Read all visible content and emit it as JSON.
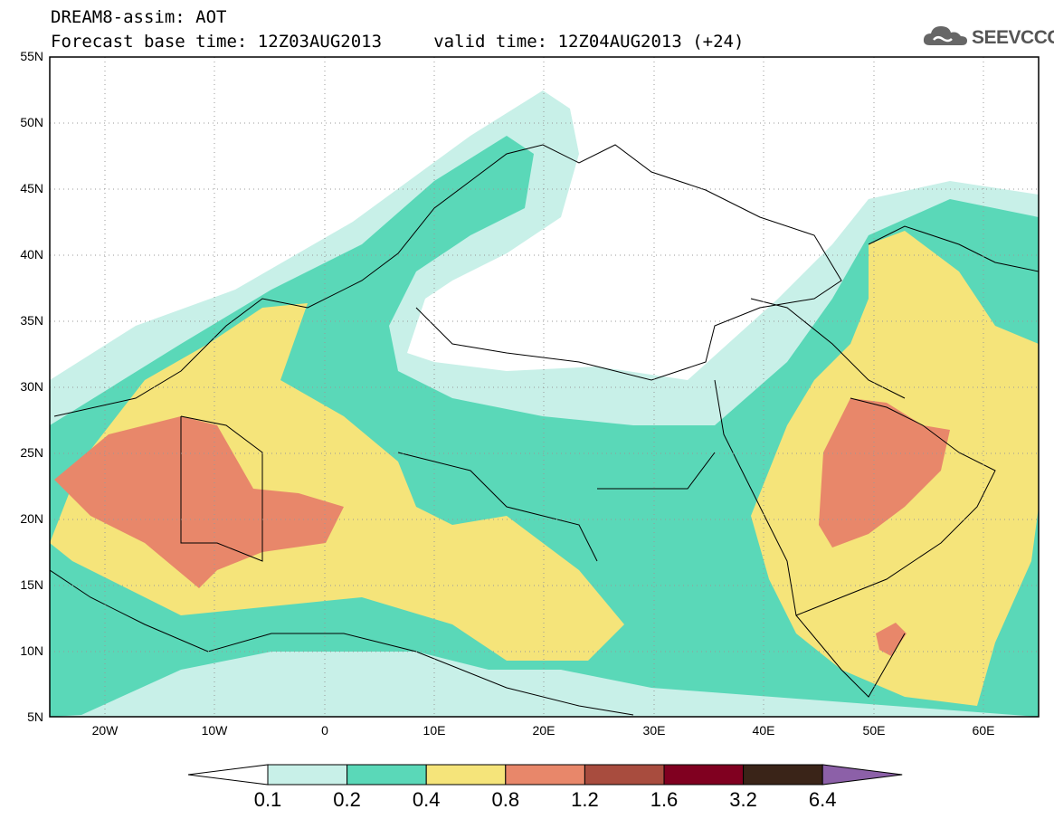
{
  "header": {
    "line1": "DREAM8-assim: AOT",
    "line2": "Forecast base time: 12Z03AUG2013     valid time: 12Z04AUG2013 (+24)"
  },
  "logo": {
    "text": "SEEVCCC",
    "icon": "cloud-logo-icon",
    "color": "#555555"
  },
  "map": {
    "lon_range": [
      -25,
      65
    ],
    "lat_range": [
      5,
      55
    ],
    "lat_ticks": [
      "5N",
      "10N",
      "15N",
      "20N",
      "25N",
      "30N",
      "35N",
      "40N",
      "45N",
      "50N",
      "55N"
    ],
    "lon_ticks": [
      "20W",
      "10W",
      "0",
      "10E",
      "20E",
      "30E",
      "40E",
      "50E",
      "60E"
    ],
    "grid": "dotted"
  },
  "colorbar": {
    "labels": [
      "0.1",
      "0.2",
      "0.4",
      "0.8",
      "1.2",
      "1.6",
      "3.2",
      "6.4"
    ],
    "colors": [
      "#ffffff",
      "#c8f0e8",
      "#5ad8b8",
      "#f5e47a",
      "#e8876a",
      "#a84c3e",
      "#800020",
      "#3a2418",
      "#8c60a8"
    ]
  }
}
